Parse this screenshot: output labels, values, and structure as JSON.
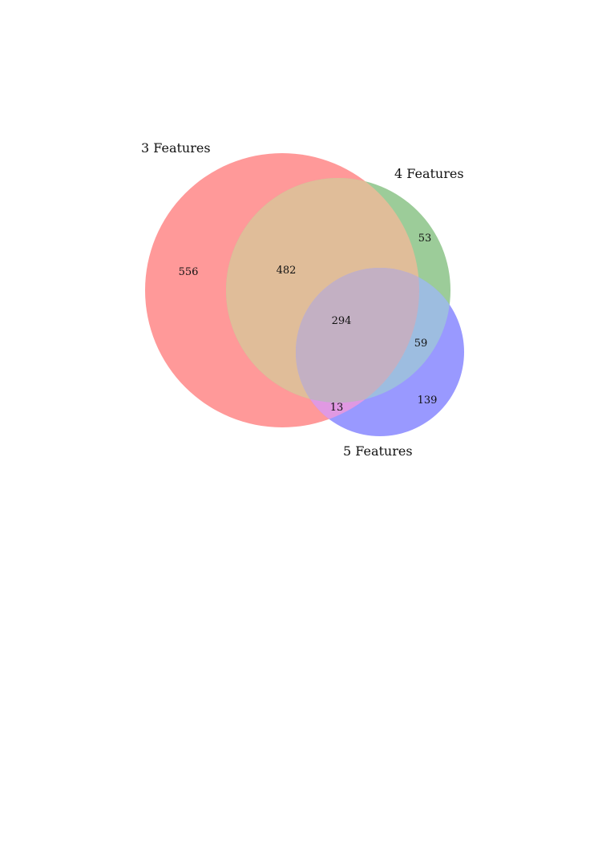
{
  "diagram": {
    "type": "venn3",
    "sets": [
      {
        "name": "3 Features",
        "color": "#ff0000"
      },
      {
        "name": "4 Features",
        "color": "#008000"
      },
      {
        "name": "5 Features",
        "color": "#0000ff"
      }
    ],
    "regions": [
      {
        "id": "only-3",
        "sets": [
          "3 Features"
        ],
        "value": "556"
      },
      {
        "id": "3-and-4",
        "sets": [
          "3 Features",
          "4 Features"
        ],
        "value": "482"
      },
      {
        "id": "only-4",
        "sets": [
          "4 Features"
        ],
        "value": "53"
      },
      {
        "id": "all-three",
        "sets": [
          "3 Features",
          "4 Features",
          "5 Features"
        ],
        "value": "294"
      },
      {
        "id": "4-and-5",
        "sets": [
          "4 Features",
          "5 Features"
        ],
        "value": "59"
      },
      {
        "id": "3-and-5",
        "sets": [
          "3 Features",
          "5 Features"
        ],
        "value": "13"
      },
      {
        "id": "only-5",
        "sets": [
          "5 Features"
        ],
        "value": "139"
      }
    ]
  }
}
